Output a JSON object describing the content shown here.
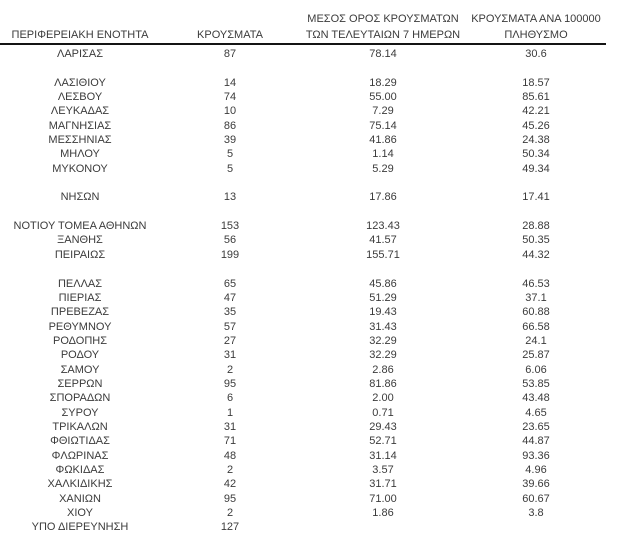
{
  "document": {
    "background_color": "#ffffff",
    "text_color": "#3b3b3b",
    "header_rule_color": "#141414"
  },
  "table": {
    "columns": [
      {
        "id": "region",
        "header_lines": [
          "",
          "ΠΕΡΙΦΕΡΕΙΑΚΗ ΕΝΟΤΗΤΑ"
        ]
      },
      {
        "id": "cases",
        "header_lines": [
          "",
          "ΚΡΟΥΣΜΑΤΑ"
        ]
      },
      {
        "id": "avg7days",
        "header_lines": [
          "ΜΕΣΟΣ ΟΡΟΣ ΚΡΟΥΣΜΑΤΩΝ",
          "ΤΩΝ ΤΕΛΕΥΤΑΙΩΝ 7 ΗΜΕΡΩΝ"
        ]
      },
      {
        "id": "per100k",
        "header_lines": [
          "ΚΡΟΥΣΜΑΤΑ ΑΝΑ 100000",
          "ΠΛΗΘΥΣΜΟ"
        ]
      }
    ],
    "rows": [
      [
        "ΛΑΡΙΣΑΣ",
        "87",
        "78.14",
        "30.6"
      ],
      [
        "",
        "",
        "",
        ""
      ],
      [
        "ΛΑΣΙΘΙΟΥ",
        "14",
        "18.29",
        "18.57"
      ],
      [
        "ΛΕΣΒΟΥ",
        "74",
        "55.00",
        "85.61"
      ],
      [
        "ΛΕΥΚΑΔΑΣ",
        "10",
        "7.29",
        "42.21"
      ],
      [
        "ΜΑΓΝΗΣΙΑΣ",
        "86",
        "75.14",
        "45.26"
      ],
      [
        "ΜΕΣΣΗΝΙΑΣ",
        "39",
        "41.86",
        "24.38"
      ],
      [
        "ΜΗΛΟΥ",
        "5",
        "1.14",
        "50.34"
      ],
      [
        "ΜΥΚΟΝΟΥ",
        "5",
        "5.29",
        "49.34"
      ],
      [
        "",
        "",
        "",
        ""
      ],
      [
        "ΝΗΣΩΝ",
        "13",
        "17.86",
        "17.41"
      ],
      [
        "",
        "",
        "",
        ""
      ],
      [
        "ΝΟΤΙΟΥ ΤΟΜΕΑ ΑΘΗΝΩΝ",
        "153",
        "123.43",
        "28.88"
      ],
      [
        "ΞΑΝΘΗΣ",
        "56",
        "41.57",
        "50.35"
      ],
      [
        "ΠΕΙΡΑΙΩΣ",
        "199",
        "155.71",
        "44.32"
      ],
      [
        "",
        "",
        "",
        ""
      ],
      [
        "ΠΕΛΛΑΣ",
        "65",
        "45.86",
        "46.53"
      ],
      [
        "ΠΙΕΡΙΑΣ",
        "47",
        "51.29",
        "37.1"
      ],
      [
        "ΠΡΕΒΕΖΑΣ",
        "35",
        "19.43",
        "60.88"
      ],
      [
        "ΡΕΘΥΜΝΟΥ",
        "57",
        "31.43",
        "66.58"
      ],
      [
        "ΡΟΔΟΠΗΣ",
        "27",
        "32.29",
        "24.1"
      ],
      [
        "ΡΟΔΟΥ",
        "31",
        "32.29",
        "25.87"
      ],
      [
        "ΣΑΜΟΥ",
        "2",
        "2.86",
        "6.06"
      ],
      [
        "ΣΕΡΡΩΝ",
        "95",
        "81.86",
        "53.85"
      ],
      [
        "ΣΠΟΡΑΔΩΝ",
        "6",
        "2.00",
        "43.48"
      ],
      [
        "ΣΥΡΟΥ",
        "1",
        "0.71",
        "4.65"
      ],
      [
        "ΤΡΙΚΑΛΩΝ",
        "31",
        "29.43",
        "23.65"
      ],
      [
        "ΦΘΙΩΤΙΔΑΣ",
        "71",
        "52.71",
        "44.87"
      ],
      [
        "ΦΛΩΡΙΝΑΣ",
        "48",
        "31.14",
        "93.36"
      ],
      [
        "ΦΩΚΙΔΑΣ",
        "2",
        "3.57",
        "4.96"
      ],
      [
        "ΧΑΛΚΙΔΙΚΗΣ",
        "42",
        "31.71",
        "39.66"
      ],
      [
        "ΧΑΝΙΩΝ",
        "95",
        "71.00",
        "60.67"
      ],
      [
        "ΧΙΟΥ",
        "2",
        "1.86",
        "3.8"
      ],
      [
        "ΥΠΟ ΔΙΕΡΕΥΝΗΣΗ",
        "127",
        "",
        ""
      ]
    ]
  }
}
